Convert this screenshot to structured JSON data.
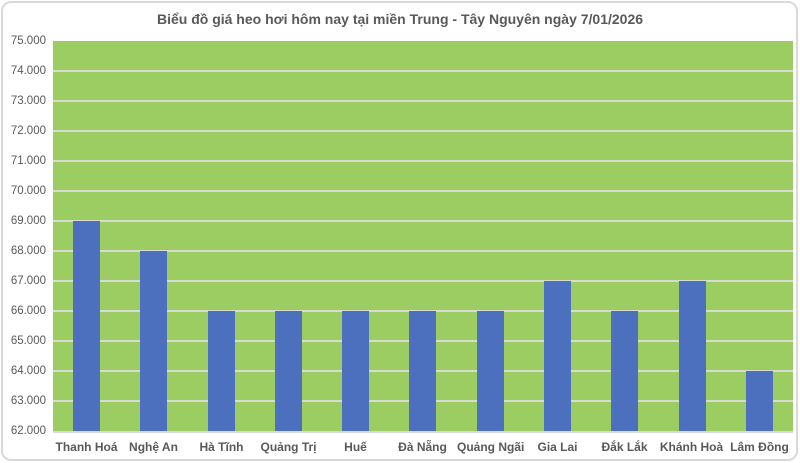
{
  "chart_data": {
    "type": "bar",
    "title": "Biểu đồ giá heo hơi hôm nay tại miền Trung - Tây Nguyên ngày 7/01/2026",
    "categories": [
      "Thanh Hoá",
      "Nghệ An",
      "Hà Tĩnh",
      "Quảng Trị",
      "Huế",
      "Đà Nẵng",
      "Quảng Ngãi",
      "Gia Lai",
      "Đắk Lắk",
      "Khánh Hoà",
      "Lâm Đồng"
    ],
    "values": [
      69000,
      68000,
      66000,
      66000,
      66000,
      66000,
      66000,
      67000,
      66000,
      67000,
      64000
    ],
    "xlabel": "",
    "ylabel": "",
    "ylim": [
      62000,
      75000
    ],
    "ytick_step": 1000,
    "ytick_labels": [
      "75.000",
      "74.000",
      "73.000",
      "72.000",
      "71.000",
      "70.000",
      "69.000",
      "68.000",
      "67.000",
      "66.000",
      "65.000",
      "64.000",
      "63.000",
      "62.000"
    ],
    "grid": true,
    "legend": false,
    "colors": {
      "bar": "#4C70BE",
      "plot_background": "#9CCD63",
      "gridline": "#D8DBD0",
      "axis_text": "#595959",
      "title_text": "#595959",
      "frame_border": "#D9D9D9"
    }
  }
}
